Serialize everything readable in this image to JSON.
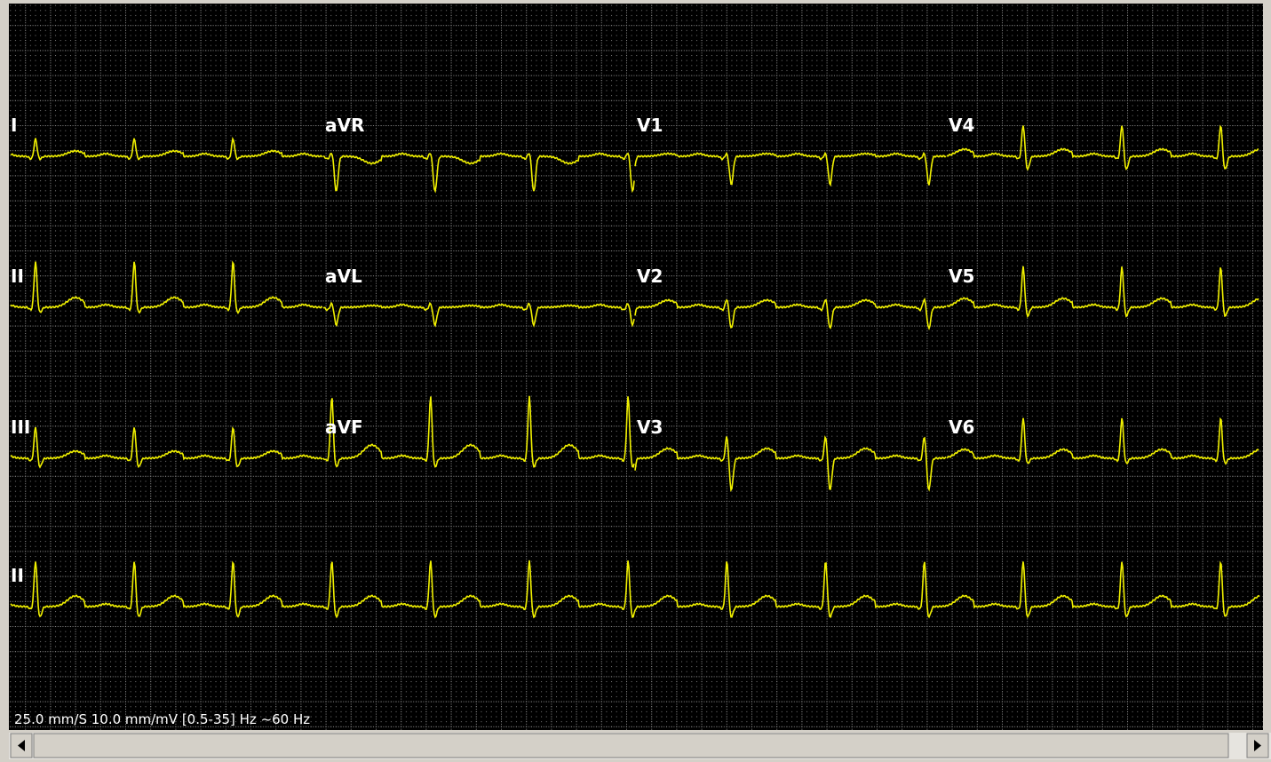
{
  "leads": [
    [
      "I",
      "aVR",
      "V1",
      "V4"
    ],
    [
      "II",
      "aVL",
      "V2",
      "V5"
    ],
    [
      "III",
      "aVF",
      "V3",
      "V6"
    ],
    [
      "II"
    ]
  ],
  "footer": "25.0 mm/S 10.0 mm/mV  [0.5-35] Hz ~60 Hz"
}
